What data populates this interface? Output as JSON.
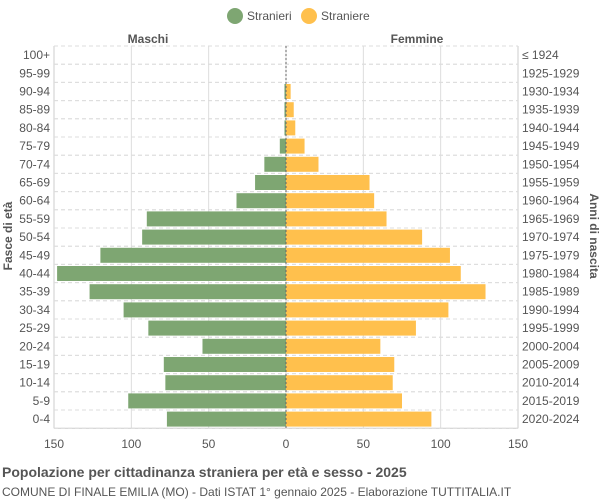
{
  "chart_data": {
    "type": "bar",
    "orientation": "horizontal-pyramid",
    "title": "Popolazione per cittadinanza straniera per età e sesso - 2025",
    "subtitle": "COMUNE DI FINALE EMILIA (MO) - Dati ISTAT 1° gennaio 2025 - Elaborazione TUTTITALIA.IT",
    "left_header": "Maschi",
    "right_header": "Femmine",
    "ylabel_left": "Fasce di età",
    "ylabel_right": "Anni di nascita",
    "categories": [
      "100+",
      "95-99",
      "90-94",
      "85-89",
      "80-84",
      "75-79",
      "70-74",
      "65-69",
      "60-64",
      "55-59",
      "50-54",
      "45-49",
      "40-44",
      "35-39",
      "30-34",
      "25-29",
      "20-24",
      "15-19",
      "10-14",
      "5-9",
      "0-4"
    ],
    "birth_years": [
      "≤ 1924",
      "1925-1929",
      "1930-1934",
      "1935-1939",
      "1940-1944",
      "1945-1949",
      "1950-1954",
      "1955-1959",
      "1960-1964",
      "1965-1969",
      "1970-1974",
      "1975-1979",
      "1980-1984",
      "1985-1989",
      "1990-1994",
      "1995-1999",
      "2000-2004",
      "2005-2009",
      "2010-2014",
      "2015-2019",
      "2020-2024"
    ],
    "series": [
      {
        "name": "Stranieri",
        "color": "#7ea672",
        "values": [
          0,
          0,
          1,
          1,
          1,
          4,
          14,
          20,
          32,
          90,
          93,
          120,
          148,
          127,
          105,
          89,
          54,
          79,
          78,
          102,
          77
        ]
      },
      {
        "name": "Straniere",
        "color": "#ffc04d",
        "values": [
          0,
          0,
          3,
          5,
          6,
          12,
          21,
          54,
          57,
          65,
          88,
          106,
          113,
          129,
          105,
          84,
          61,
          70,
          69,
          75,
          94
        ]
      }
    ],
    "xlim": [
      -150,
      150
    ],
    "xticks": [
      "150",
      "100",
      "50",
      "0",
      "50",
      "100",
      "150"
    ],
    "xtick_values": [
      -150,
      -100,
      -50,
      0,
      50,
      100,
      150
    ],
    "legend_position": "top",
    "grid": true
  }
}
